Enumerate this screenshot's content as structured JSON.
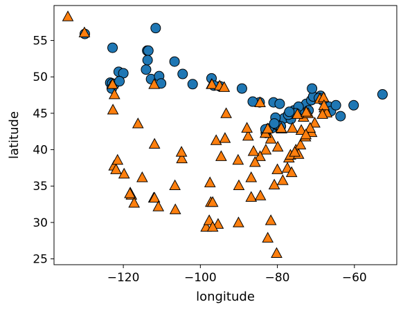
{
  "chart_data": {
    "type": "scatter",
    "title": "",
    "xlabel": "longitude",
    "ylabel": "latitude",
    "xlim": [
      -138,
      -49
    ],
    "ylim": [
      24.2,
      59.8
    ],
    "x_ticks": [
      -120,
      -100,
      -80,
      -60
    ],
    "y_ticks": [
      25,
      30,
      35,
      40,
      45,
      50,
      55
    ],
    "x_tick_labels": [
      "−120",
      "−100",
      "−80",
      "−60"
    ],
    "y_tick_labels": [
      "25",
      "30",
      "35",
      "40",
      "45",
      "50",
      "55"
    ],
    "grid": false,
    "legend": "none",
    "series": [
      {
        "marker": "circle",
        "color": "#1f77b4",
        "points": [
          [
            -130.0,
            55.9
          ],
          [
            -122.8,
            54.0
          ],
          [
            -111.6,
            56.7
          ],
          [
            -123.4,
            49.2
          ],
          [
            -122.9,
            49.1
          ],
          [
            -123.0,
            48.4
          ],
          [
            -122.3,
            49.0
          ],
          [
            -121.2,
            50.7
          ],
          [
            -120.0,
            50.5
          ],
          [
            -114.1,
            51.0
          ],
          [
            -113.8,
            53.6
          ],
          [
            -113.5,
            53.6
          ],
          [
            -113.7,
            52.3
          ],
          [
            -112.8,
            49.7
          ],
          [
            -110.7,
            50.1
          ],
          [
            -106.7,
            52.1
          ],
          [
            -104.6,
            50.4
          ],
          [
            -97.1,
            49.8
          ],
          [
            -94.9,
            48.7
          ],
          [
            -89.2,
            48.4
          ],
          [
            -84.6,
            46.5
          ],
          [
            -81.0,
            46.5
          ],
          [
            -79.4,
            46.3
          ],
          [
            -83.0,
            42.3
          ],
          [
            -81.3,
            43.0
          ],
          [
            -79.9,
            43.3
          ],
          [
            -79.4,
            43.7
          ],
          [
            -78.3,
            44.3
          ],
          [
            -76.5,
            44.2
          ],
          [
            -75.7,
            45.4
          ],
          [
            -73.6,
            45.5
          ],
          [
            -72.5,
            46.3
          ],
          [
            -71.2,
            46.8
          ],
          [
            -71.9,
            45.4
          ],
          [
            -70.7,
            47.3
          ],
          [
            -68.8,
            47.4
          ],
          [
            -66.6,
            45.9
          ],
          [
            -66.1,
            45.3
          ],
          [
            -64.8,
            46.1
          ],
          [
            -63.6,
            44.6
          ],
          [
            -60.2,
            46.1
          ],
          [
            -52.7,
            47.6
          ],
          [
            -80.0,
            43.4
          ],
          [
            -74.5,
            45.9
          ],
          [
            -71.0,
            48.4
          ],
          [
            -68.3,
            46.8
          ],
          [
            -82.3,
            42.9
          ],
          [
            -80.5,
            44.4
          ],
          [
            -77.2,
            44.8
          ],
          [
            -75.2,
            45.0
          ],
          [
            -69.2,
            47.1
          ],
          [
            -121.0,
            49.4
          ],
          [
            -110.2,
            49.1
          ],
          [
            -102.0,
            49.0
          ],
          [
            -96.5,
            48.8
          ],
          [
            -79.1,
            43.2
          ],
          [
            -83.1,
            42.8
          ],
          [
            -86.4,
            46.6
          ],
          [
            -80.8,
            43.6
          ],
          [
            -76.9,
            45.2
          ]
        ]
      },
      {
        "marker": "triangle",
        "color": "#ff7f0e",
        "points": [
          [
            -134.4,
            58.3
          ],
          [
            -130.1,
            56.1
          ],
          [
            -122.3,
            47.6
          ],
          [
            -122.7,
            45.5
          ],
          [
            -122.4,
            37.8
          ],
          [
            -121.9,
            37.3
          ],
          [
            -121.5,
            38.6
          ],
          [
            -119.8,
            36.7
          ],
          [
            -118.2,
            34.1
          ],
          [
            -117.9,
            33.8
          ],
          [
            -117.2,
            32.7
          ],
          [
            -115.1,
            36.2
          ],
          [
            -112.1,
            33.4
          ],
          [
            -111.9,
            33.4
          ],
          [
            -110.9,
            32.2
          ],
          [
            -106.6,
            35.1
          ],
          [
            -106.5,
            31.8
          ],
          [
            -104.8,
            38.8
          ],
          [
            -104.9,
            39.7
          ],
          [
            -97.5,
            35.5
          ],
          [
            -97.3,
            32.8
          ],
          [
            -96.8,
            32.8
          ],
          [
            -95.4,
            29.8
          ],
          [
            -98.5,
            29.4
          ],
          [
            -97.7,
            30.3
          ],
          [
            -94.6,
            39.1
          ],
          [
            -95.9,
            41.3
          ],
          [
            -93.3,
            45.0
          ],
          [
            -90.2,
            38.6
          ],
          [
            -90.1,
            30.0
          ],
          [
            -90.0,
            35.1
          ],
          [
            -86.8,
            36.2
          ],
          [
            -86.8,
            33.5
          ],
          [
            -84.4,
            33.7
          ],
          [
            -81.7,
            30.3
          ],
          [
            -82.5,
            27.9
          ],
          [
            -80.2,
            25.8
          ],
          [
            -80.8,
            35.2
          ],
          [
            -78.6,
            35.8
          ],
          [
            -77.4,
            37.5
          ],
          [
            -77.0,
            38.9
          ],
          [
            -76.6,
            39.3
          ],
          [
            -75.2,
            40.0
          ],
          [
            -74.0,
            40.7
          ],
          [
            -71.1,
            42.4
          ],
          [
            -72.7,
            41.8
          ],
          [
            -73.8,
            42.7
          ],
          [
            -76.1,
            43.0
          ],
          [
            -78.9,
            42.9
          ],
          [
            -81.7,
            41.5
          ],
          [
            -83.0,
            40.0
          ],
          [
            -84.5,
            39.1
          ],
          [
            -85.8,
            38.3
          ],
          [
            -86.2,
            39.8
          ],
          [
            -87.6,
            41.9
          ],
          [
            -87.9,
            43.0
          ],
          [
            -83.0,
            42.3
          ],
          [
            -79.9,
            40.4
          ],
          [
            -93.6,
            41.6
          ],
          [
            -97.1,
            49.0
          ],
          [
            -70.3,
            43.7
          ],
          [
            -71.5,
            43.0
          ],
          [
            -73.2,
            44.5
          ],
          [
            -72.6,
            42.1
          ],
          [
            -111.9,
            40.8
          ],
          [
            -116.2,
            43.6
          ],
          [
            -112.0,
            49.0
          ],
          [
            -122.8,
            49.0
          ],
          [
            -118.3,
            34.0
          ],
          [
            -97.0,
            49.0
          ],
          [
            -95.0,
            48.8
          ],
          [
            -93.8,
            48.6
          ],
          [
            -72.0,
            45.0
          ],
          [
            -69.0,
            47.0
          ],
          [
            -68.0,
            47.2
          ],
          [
            -67.8,
            45.8
          ],
          [
            -67.2,
            45.1
          ],
          [
            -79.0,
            43.0
          ],
          [
            -83.1,
            42.3
          ],
          [
            -84.5,
            46.5
          ],
          [
            -67.9,
            46.1
          ],
          [
            -68.3,
            44.9
          ],
          [
            -74.8,
            44.9
          ],
          [
            -74.5,
            39.4
          ],
          [
            -75.5,
            39.7
          ],
          [
            -76.3,
            36.9
          ],
          [
            -96.8,
            29.4
          ],
          [
            -80.0,
            37.3
          ],
          [
            -82.5,
            42.9
          ],
          [
            -72.5,
            45.2
          ]
        ]
      }
    ]
  }
}
